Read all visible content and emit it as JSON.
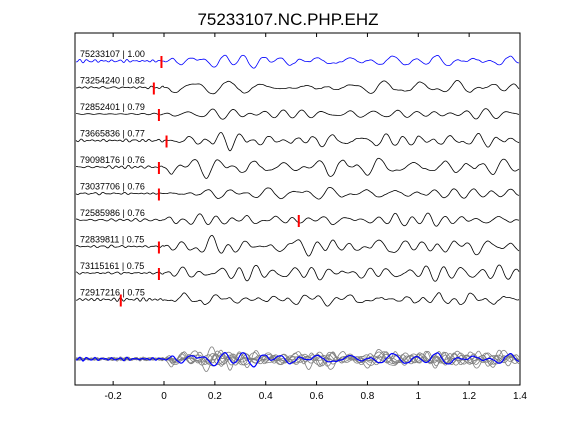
{
  "chart_data": {
    "type": "line",
    "title": "75233107.NC.PHP.EHZ",
    "xlabel": "",
    "ylabel": "",
    "xlim": [
      -0.35,
      1.4
    ],
    "xticks": [
      -0.2,
      0,
      0.2,
      0.4,
      0.6,
      0.8,
      1,
      1.2,
      1.4
    ],
    "xtick_labels": [
      "-0.2",
      "0",
      "0.2",
      "0.4",
      "0.6",
      "0.8",
      "1",
      "1.2",
      "1.4"
    ],
    "grid": false,
    "colors": {
      "reference": "#0000ff",
      "trace": "#000000",
      "pick": "#ff0000",
      "stack": "#808080"
    },
    "series": [
      {
        "label": "75233107 | 1.00",
        "pick_time": -0.01,
        "reference": true
      },
      {
        "label": "73254240 | 0.82",
        "pick_time": -0.04
      },
      {
        "label": "72852401 | 0.79",
        "pick_time": -0.02
      },
      {
        "label": "73665836 | 0.77",
        "pick_time": 0.01
      },
      {
        "label": "79098176 | 0.76",
        "pick_time": -0.02
      },
      {
        "label": "73037706 | 0.76",
        "pick_time": -0.02
      },
      {
        "label": "72585986 | 0.76",
        "pick_time": 0.53
      },
      {
        "label": "72839811 | 0.75",
        "pick_time": -0.02
      },
      {
        "label": "73115161 | 0.75",
        "pick_time": -0.02
      },
      {
        "label": "72917216 | 0.75",
        "pick_time": -0.17
      }
    ],
    "stack": {
      "traces": "overlay",
      "reference_color": "#0000ff",
      "other_color": "#808080"
    }
  }
}
